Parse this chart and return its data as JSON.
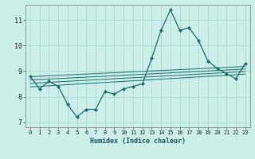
{
  "xlabel": "Humidex (Indice chaleur)",
  "ylabel": "",
  "bg_color": "#cceee8",
  "grid_color": "#aad8d0",
  "line_color": "#1a6b6b",
  "marker_color": "#1a6b6b",
  "xlim": [
    -0.5,
    23.5
  ],
  "ylim": [
    6.8,
    11.6
  ],
  "yticks": [
    7,
    8,
    9,
    10,
    11
  ],
  "xticks": [
    0,
    1,
    2,
    3,
    4,
    5,
    6,
    7,
    8,
    9,
    10,
    11,
    12,
    13,
    14,
    15,
    16,
    17,
    18,
    19,
    20,
    21,
    22,
    23
  ],
  "main_x": [
    0,
    1,
    2,
    3,
    4,
    5,
    6,
    7,
    8,
    9,
    10,
    11,
    12,
    13,
    14,
    15,
    16,
    17,
    18,
    19,
    20,
    21,
    22,
    23
  ],
  "main_y": [
    8.8,
    8.3,
    8.6,
    8.4,
    7.7,
    7.2,
    7.5,
    7.5,
    8.2,
    8.1,
    8.3,
    8.4,
    8.5,
    9.5,
    10.6,
    11.4,
    10.6,
    10.7,
    10.2,
    9.4,
    9.1,
    8.9,
    8.7,
    9.3
  ],
  "trend_lines": [
    [
      8.78,
      9.18
    ],
    [
      8.65,
      9.08
    ],
    [
      8.52,
      8.98
    ],
    [
      8.38,
      8.88
    ]
  ]
}
